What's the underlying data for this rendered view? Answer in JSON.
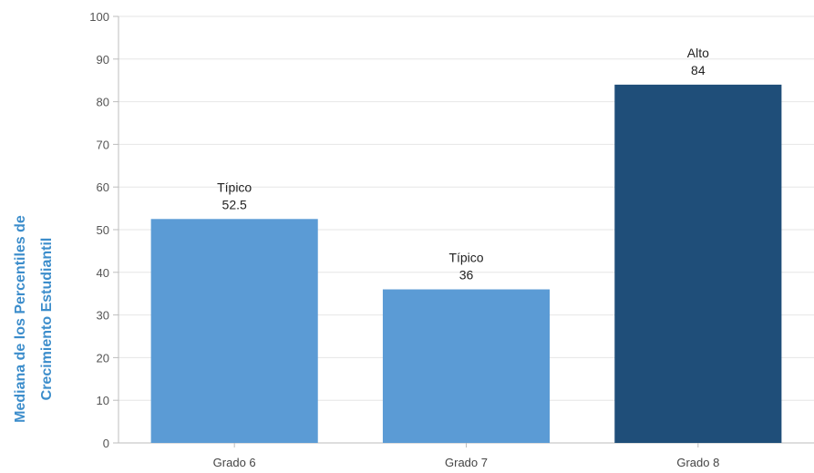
{
  "chart_data": {
    "type": "bar",
    "title": "",
    "xlabel": "",
    "ylabel": "Mediana de los Percentiles de Crecimiento Estudiantil",
    "ylabel_lines": [
      "Mediana de los Percentiles de",
      "Crecimiento Estudiantil"
    ],
    "categories": [
      "Grado 6",
      "Grado 7",
      "Grado 8"
    ],
    "values": [
      52.5,
      36,
      84
    ],
    "value_labels": [
      "52.5",
      "36",
      "84"
    ],
    "level_labels": [
      "Típico",
      "Típico",
      "Alto"
    ],
    "bar_colors": [
      "#5b9bd5",
      "#5b9bd5",
      "#1f4e79"
    ],
    "ylim": [
      0,
      100
    ],
    "yticks": [
      0,
      10,
      20,
      30,
      40,
      50,
      60,
      70,
      80,
      90,
      100
    ],
    "grid": true,
    "legend": "none"
  },
  "colors": {
    "axis_label": "#3c8dcb",
    "typical_bar": "#5b9bd5",
    "high_bar": "#1f4e79"
  }
}
